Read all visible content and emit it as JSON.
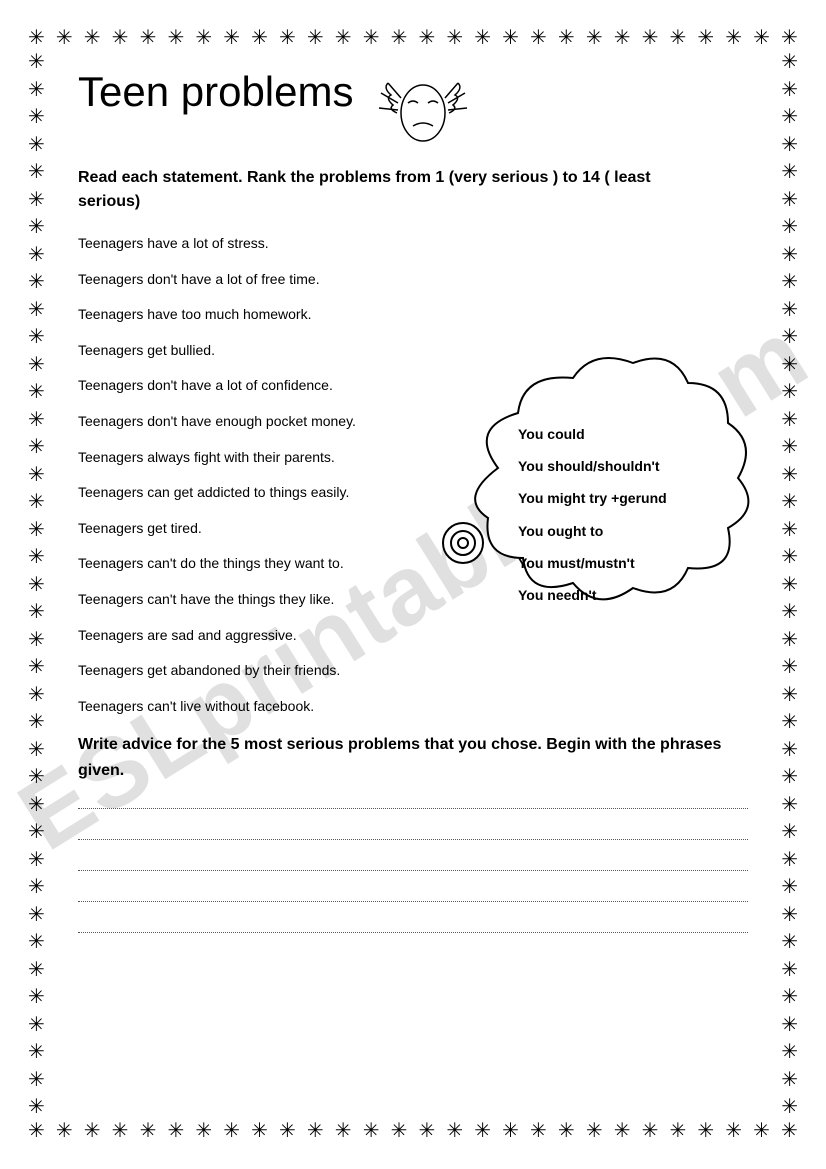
{
  "title": "Teen problems",
  "instructions1": "Read each statement. Rank the problems from 1 (very serious ) to 14 ( least serious)",
  "statements": [
    "Teenagers have a lot of stress.",
    "Teenagers don't have a lot of free time.",
    "Teenagers have too much homework.",
    "Teenagers get bullied.",
    "Teenagers don't have a lot of confidence.",
    "Teenagers don't have enough pocket money.",
    "Teenagers always fight with their parents.",
    "Teenagers can get addicted to things easily.",
    "Teenagers get tired.",
    "Teenagers can't do the things they want to.",
    "Teenagers can't have the things they like.",
    "Teenagers are sad and aggressive.",
    "Teenagers get abandoned by their friends.",
    "Teenagers can't live without facebook."
  ],
  "cloud_phrases": [
    "You could",
    "You should/shouldn't",
    "You might try +gerund",
    "You ought to",
    "You must/mustn't",
    "You needn't"
  ],
  "instructions2": "Write advice for the 5 most serious problems that you chose. Begin with the phrases given.",
  "watermark": "ESLprintables.com",
  "border": {
    "horizontal_count": 28,
    "vertical_count": 39,
    "glyph": "✳"
  },
  "colors": {
    "text": "#000000",
    "background": "#ffffff",
    "watermark": "rgba(0,0,0,0.12)",
    "dotted": "#555555"
  },
  "answer_lines": 5
}
